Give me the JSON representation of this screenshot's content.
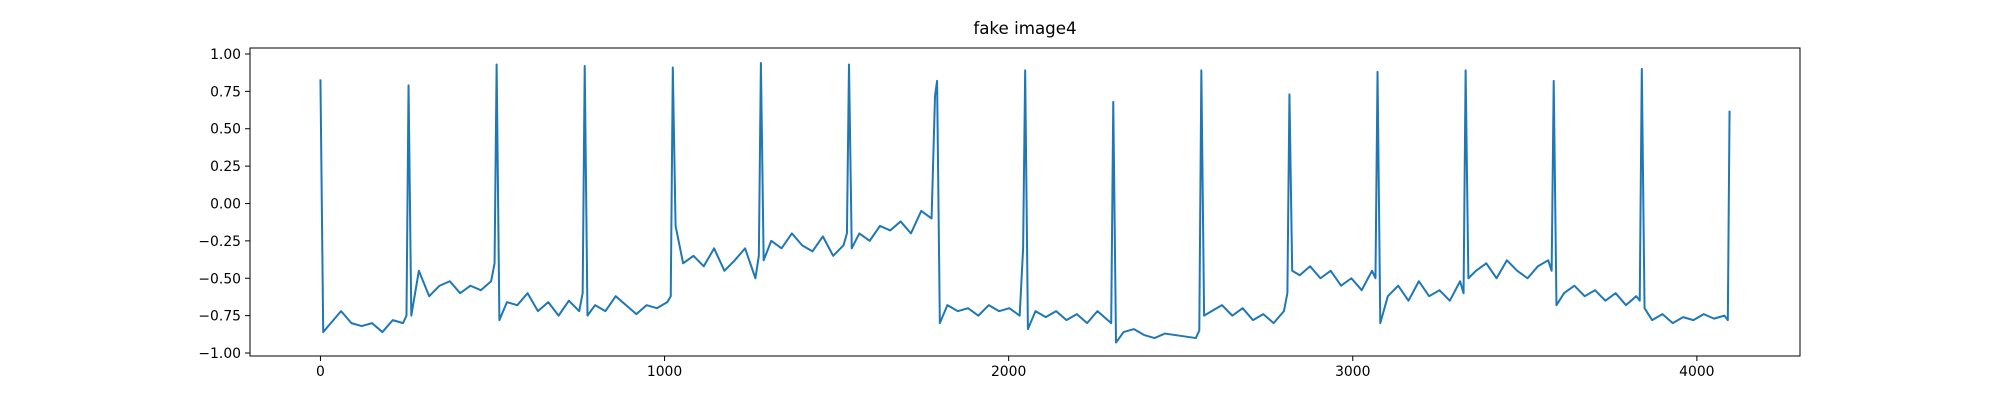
{
  "chart_data": {
    "type": "line",
    "title": "fake image4",
    "x": [
      0,
      8,
      30,
      60,
      90,
      120,
      150,
      180,
      210,
      240,
      250,
      256,
      264,
      286,
      316,
      346,
      376,
      406,
      436,
      466,
      496,
      506,
      512,
      520,
      542,
      572,
      602,
      632,
      662,
      692,
      722,
      752,
      762,
      768,
      776,
      798,
      828,
      858,
      888,
      918,
      948,
      978,
      1008,
      1018,
      1024,
      1032,
      1054,
      1084,
      1114,
      1144,
      1174,
      1204,
      1234,
      1264,
      1274,
      1280,
      1288,
      1310,
      1340,
      1370,
      1400,
      1430,
      1460,
      1490,
      1520,
      1530,
      1536,
      1544,
      1566,
      1596,
      1626,
      1656,
      1686,
      1716,
      1746,
      1776,
      1786,
      1792,
      1800,
      1822,
      1852,
      1882,
      1912,
      1942,
      1972,
      2002,
      2032,
      2042,
      2048,
      2056,
      2078,
      2108,
      2138,
      2168,
      2198,
      2228,
      2258,
      2288,
      2298,
      2304,
      2312,
      2334,
      2364,
      2394,
      2424,
      2454,
      2484,
      2514,
      2544,
      2554,
      2560,
      2568,
      2590,
      2620,
      2650,
      2680,
      2710,
      2740,
      2770,
      2800,
      2810,
      2816,
      2824,
      2846,
      2876,
      2906,
      2936,
      2966,
      2996,
      3026,
      3056,
      3066,
      3072,
      3080,
      3102,
      3132,
      3162,
      3192,
      3222,
      3252,
      3282,
      3312,
      3322,
      3328,
      3336,
      3358,
      3388,
      3418,
      3448,
      3478,
      3508,
      3538,
      3568,
      3578,
      3584,
      3592,
      3614,
      3644,
      3674,
      3704,
      3734,
      3764,
      3794,
      3824,
      3834,
      3840,
      3848,
      3870,
      3900,
      3930,
      3960,
      3990,
      4020,
      4050,
      4080,
      4090,
      4095
    ],
    "series": [
      {
        "color": "#1f77b4",
        "values": [
          0.83,
          -0.86,
          -0.8,
          -0.72,
          -0.8,
          -0.82,
          -0.8,
          -0.86,
          -0.78,
          -0.8,
          -0.75,
          0.79,
          -0.75,
          -0.45,
          -0.62,
          -0.55,
          -0.52,
          -0.6,
          -0.55,
          -0.58,
          -0.52,
          -0.4,
          0.93,
          -0.78,
          -0.66,
          -0.68,
          -0.6,
          -0.72,
          -0.66,
          -0.75,
          -0.65,
          -0.72,
          -0.6,
          0.92,
          -0.75,
          -0.68,
          -0.72,
          -0.62,
          -0.68,
          -0.74,
          -0.68,
          -0.7,
          -0.66,
          -0.62,
          0.91,
          -0.15,
          -0.4,
          -0.35,
          -0.42,
          -0.3,
          -0.45,
          -0.38,
          -0.3,
          -0.5,
          -0.35,
          0.94,
          -0.38,
          -0.25,
          -0.3,
          -0.2,
          -0.28,
          -0.32,
          -0.22,
          -0.35,
          -0.28,
          -0.2,
          0.93,
          -0.3,
          -0.2,
          -0.25,
          -0.15,
          -0.18,
          -0.12,
          -0.2,
          -0.05,
          -0.1,
          0.72,
          0.82,
          -0.8,
          -0.68,
          -0.72,
          -0.7,
          -0.75,
          -0.68,
          -0.72,
          -0.7,
          -0.75,
          -0.3,
          0.89,
          -0.84,
          -0.72,
          -0.76,
          -0.72,
          -0.78,
          -0.74,
          -0.8,
          -0.72,
          -0.78,
          -0.8,
          0.68,
          -0.93,
          -0.86,
          -0.84,
          -0.88,
          -0.9,
          -0.87,
          -0.88,
          -0.89,
          -0.9,
          -0.85,
          0.89,
          -0.75,
          -0.72,
          -0.68,
          -0.75,
          -0.7,
          -0.78,
          -0.74,
          -0.8,
          -0.72,
          -0.6,
          0.73,
          -0.45,
          -0.48,
          -0.42,
          -0.5,
          -0.45,
          -0.55,
          -0.5,
          -0.58,
          -0.45,
          -0.5,
          0.88,
          -0.8,
          -0.62,
          -0.55,
          -0.65,
          -0.52,
          -0.62,
          -0.58,
          -0.65,
          -0.52,
          -0.6,
          0.89,
          -0.5,
          -0.45,
          -0.4,
          -0.5,
          -0.38,
          -0.45,
          -0.5,
          -0.42,
          -0.38,
          -0.45,
          0.82,
          -0.68,
          -0.6,
          -0.55,
          -0.62,
          -0.58,
          -0.65,
          -0.6,
          -0.68,
          -0.62,
          -0.65,
          0.9,
          -0.7,
          -0.78,
          -0.74,
          -0.8,
          -0.76,
          -0.78,
          -0.74,
          -0.77,
          -0.75,
          -0.78,
          0.62
        ]
      }
    ],
    "xlim": [
      -204.75,
      4299.75
    ],
    "ylim": [
      -1.02,
      1.04
    ],
    "xticks": [
      0,
      1000,
      2000,
      3000,
      4000
    ],
    "yticks": [
      {
        "value": 1,
        "label": "1.00"
      },
      {
        "value": 0.75,
        "label": "0.75"
      },
      {
        "value": 0.5,
        "label": "0.50"
      },
      {
        "value": 0.25,
        "label": "0.25"
      },
      {
        "value": 0,
        "label": "0.00"
      },
      {
        "value": -0.25,
        "label": "−0.25"
      },
      {
        "value": -0.5,
        "label": "−0.50"
      },
      {
        "value": -0.75,
        "label": "−0.75"
      },
      {
        "value": -1,
        "label": "−1.00"
      }
    ],
    "grid": false
  }
}
